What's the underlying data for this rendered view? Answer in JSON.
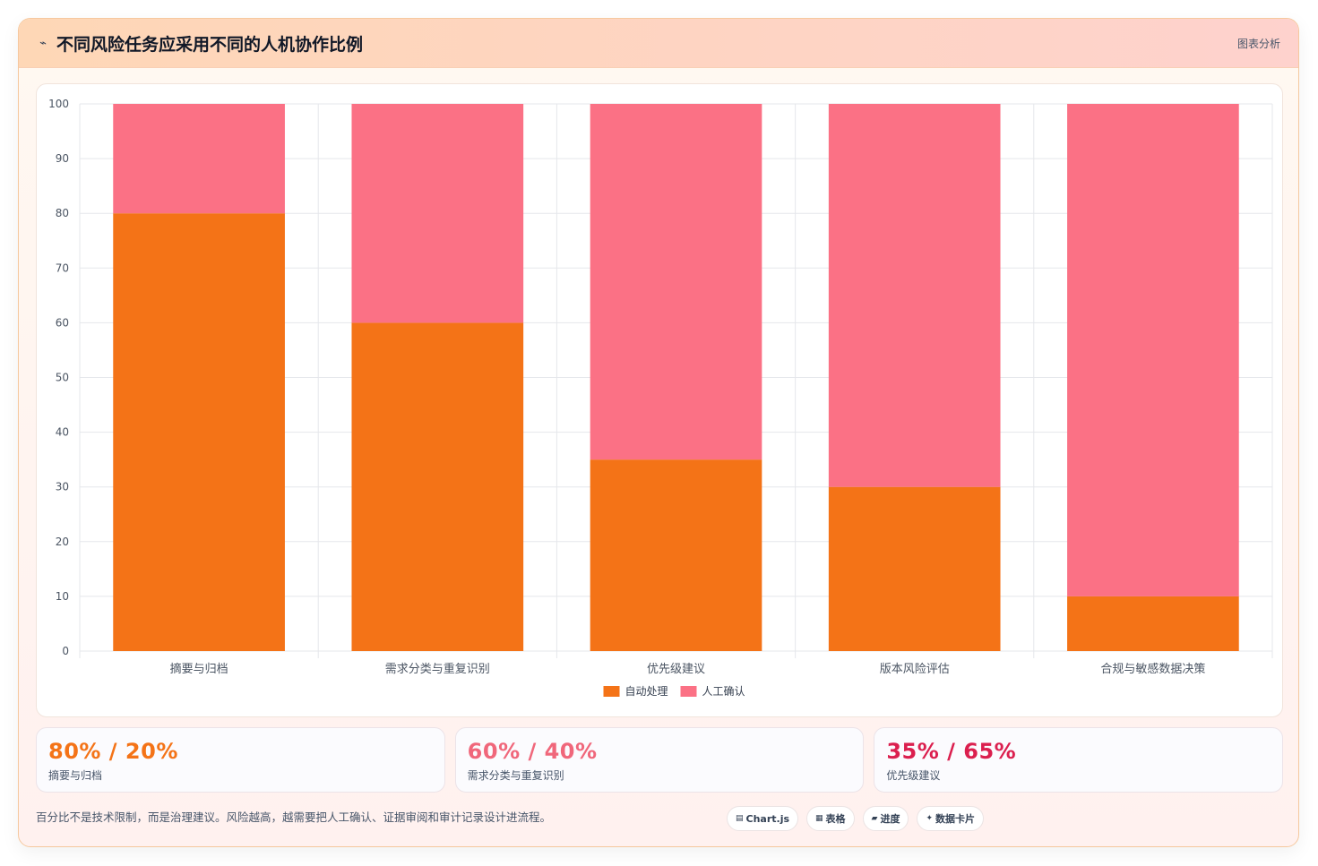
{
  "header": {
    "icon": "chart-decor-icon",
    "title": "不同风险任务应采用不同的人机协作比例",
    "tag": "图表分析"
  },
  "chart_data": {
    "type": "bar",
    "stacked": true,
    "categories": [
      "摘要与归档",
      "需求分类与重复识别",
      "优先级建议",
      "版本风险评估",
      "合规与敏感数据决策"
    ],
    "series": [
      {
        "name": "自动处理",
        "values": [
          80,
          60,
          35,
          30,
          10
        ],
        "color": "#f47317"
      },
      {
        "name": "人工确认",
        "values": [
          20,
          40,
          65,
          70,
          90
        ],
        "color": "#fb7185"
      }
    ],
    "ylim": [
      0,
      100
    ],
    "yticks": [
      0,
      10,
      20,
      30,
      40,
      50,
      60,
      70,
      80,
      90,
      100
    ],
    "grid": true,
    "legend": "bottom"
  },
  "stats": [
    {
      "value": "80% / 20%",
      "label": "摘要与归档",
      "color": "#f47317"
    },
    {
      "value": "60% / 40%",
      "label": "需求分类与重复识别",
      "color": "#f0677b"
    },
    {
      "value": "35% / 65%",
      "label": "优先级建议",
      "color": "#db1f4e"
    }
  ],
  "footer": {
    "note": "百分比不是技术限制，而是治理建议。风险越高，越需要把人工确认、证据审阅和审计记录设计进流程。"
  },
  "badges": [
    {
      "icon": "▤",
      "icon_name": "chart-icon",
      "label": "Chart.js"
    },
    {
      "icon": "▦",
      "icon_name": "table-icon",
      "label": "表格"
    },
    {
      "icon": "▰",
      "icon_name": "progress-icon",
      "label": "进度"
    },
    {
      "icon": "✦",
      "icon_name": "sparkle-icon",
      "label": "数据卡片"
    }
  ]
}
